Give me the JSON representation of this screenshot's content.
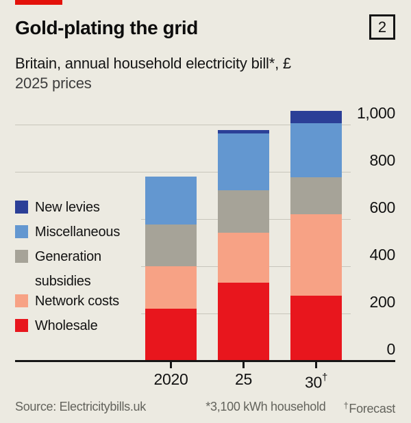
{
  "header": {
    "title": "Gold-plating the grid",
    "index_label": "2",
    "subtitle": "Britain, annual household electricity bill*, £",
    "subtitle2": "2025 prices"
  },
  "chart_data": {
    "type": "bar",
    "stacked": true,
    "title": "Gold-plating the grid",
    "subtitle": "Britain, annual household electricity bill*, £, 2025 prices",
    "categories": [
      {
        "label": "2020",
        "sup": ""
      },
      {
        "label": "25",
        "sup": ""
      },
      {
        "label": "30",
        "sup": "†"
      }
    ],
    "series": [
      {
        "name": "Wholesale",
        "color": "#E8161D",
        "values": [
          220,
          330,
          275
        ]
      },
      {
        "name": "Network costs",
        "color": "#F7A285",
        "values": [
          180,
          210,
          345
        ]
      },
      {
        "name": "Generation subsidies",
        "color": "#A6A398",
        "values": [
          175,
          180,
          155
        ]
      },
      {
        "name": "Miscellaneous",
        "color": "#6397D0",
        "values": [
          205,
          240,
          230
        ]
      },
      {
        "name": "New levies",
        "color": "#2B3F97",
        "values": [
          0,
          15,
          50
        ]
      }
    ],
    "totals": [
      780,
      975,
      1055
    ],
    "yticks": [
      {
        "value": 0,
        "label": "0"
      },
      {
        "value": 200,
        "label": "200"
      },
      {
        "value": 400,
        "label": "400"
      },
      {
        "value": 600,
        "label": "600"
      },
      {
        "value": 800,
        "label": "800"
      },
      {
        "value": 1000,
        "label": "1,000"
      }
    ],
    "ylim": [
      0,
      1055
    ],
    "grid": "horizontal",
    "legend_position": "left-overlay"
  },
  "footer": {
    "source": "Source: Electricitybills.uk",
    "note1": "*3,100 kWh household",
    "note2_sup": "†",
    "note2": "Forecast"
  },
  "colors": {
    "background": "#ECEAE1",
    "accent_red": "#E3120B",
    "grid": "#C7C5BB",
    "axis": "#161616",
    "text": "#121212",
    "muted_text": "#63635C"
  }
}
